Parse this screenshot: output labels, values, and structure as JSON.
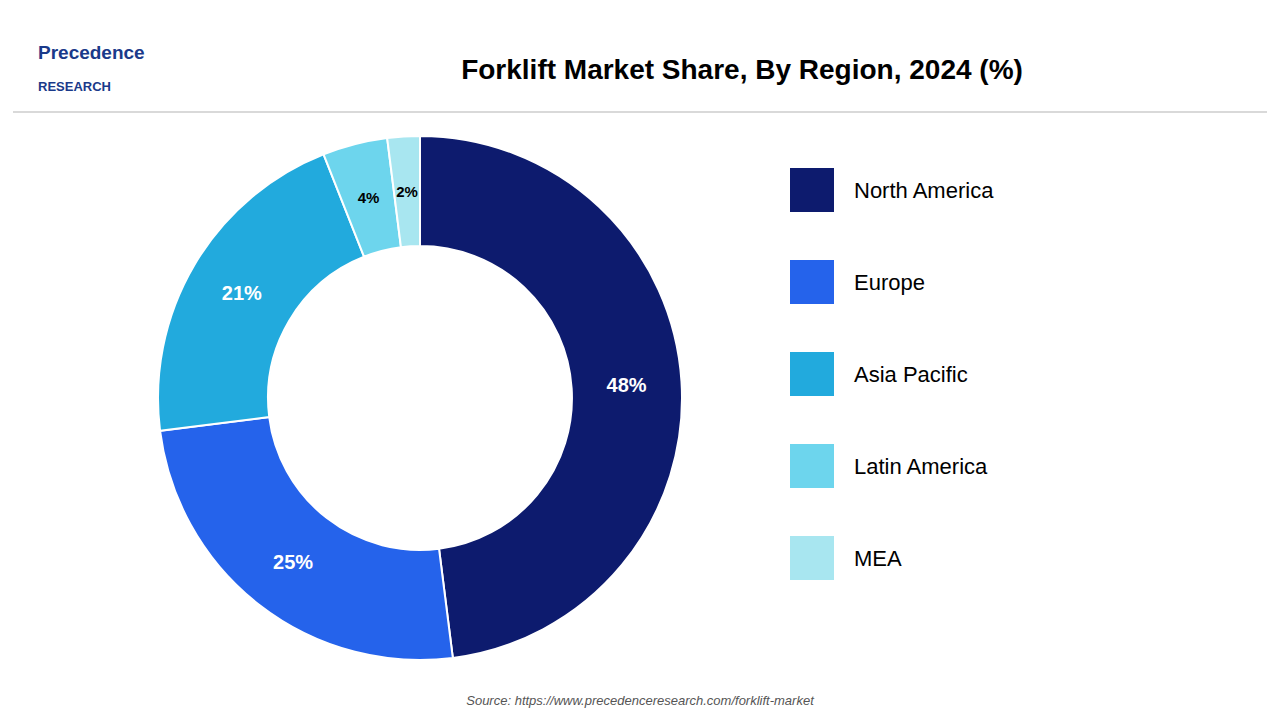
{
  "chart_data": {
    "type": "donut",
    "title": "Forklift Market Share, By Region, 2024 (%)",
    "categories": [
      "North America",
      "Europe",
      "Asia Pacific",
      "Latin America",
      "MEA"
    ],
    "values": [
      48,
      25,
      21,
      4,
      2
    ],
    "value_labels": [
      "48%",
      "25%",
      "21%",
      "4%",
      "2%"
    ],
    "colors": [
      "#0d1b6e",
      "#2563eb",
      "#22aadd",
      "#6dd5ed",
      "#a8e6f0"
    ],
    "data_labels": true,
    "legend": "right",
    "annotations": [
      "Source: https://www.precedenceresearch.com/forklift-market",
      "Precedence",
      "RESEARCH"
    ]
  }
}
